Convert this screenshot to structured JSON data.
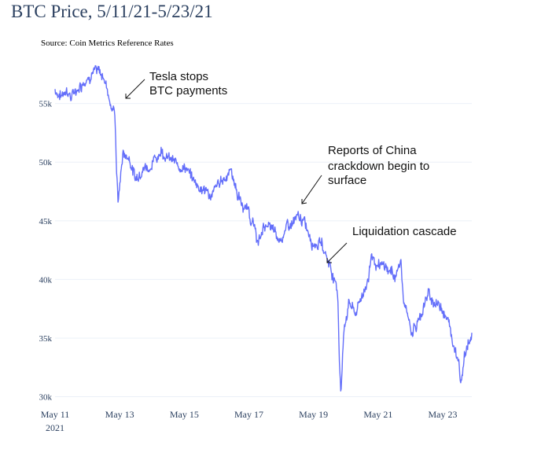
{
  "chart_data": {
    "type": "line",
    "title": "BTC Price, 5/11/21-5/23/21",
    "source": "Source: Coin Metrics Reference Rates",
    "series_color": "#636efa",
    "xlabel": "",
    "ylabel": "",
    "ylim": [
      29500,
      59000
    ],
    "xlim": [
      0,
      12.9
    ],
    "y_ticks": [
      {
        "value": 30000,
        "label": "30k"
      },
      {
        "value": 35000,
        "label": "35k"
      },
      {
        "value": 40000,
        "label": "40k"
      },
      {
        "value": 45000,
        "label": "45k"
      },
      {
        "value": 50000,
        "label": "50k"
      },
      {
        "value": 55000,
        "label": "55k"
      }
    ],
    "x_ticks": [
      {
        "value": 0,
        "label": "May 11",
        "sublabel": "2021"
      },
      {
        "value": 2,
        "label": "May 13"
      },
      {
        "value": 4,
        "label": "May 15"
      },
      {
        "value": 6,
        "label": "May 17"
      },
      {
        "value": 8,
        "label": "May 19"
      },
      {
        "value": 10,
        "label": "May 21"
      },
      {
        "value": 12,
        "label": "May 23"
      }
    ],
    "anchors": [
      [
        0.0,
        56200
      ],
      [
        0.2,
        55600
      ],
      [
        0.35,
        56400
      ],
      [
        0.5,
        55500
      ],
      [
        0.7,
        56300
      ],
      [
        0.9,
        57100
      ],
      [
        1.05,
        57400
      ],
      [
        1.15,
        58000
      ],
      [
        1.3,
        57600
      ],
      [
        1.5,
        57300
      ],
      [
        1.6,
        56600
      ],
      [
        1.75,
        54700
      ],
      [
        1.85,
        54200
      ],
      [
        1.9,
        50000
      ],
      [
        1.95,
        46500
      ],
      [
        2.0,
        48000
      ],
      [
        2.1,
        50800
      ],
      [
        2.3,
        50400
      ],
      [
        2.5,
        48500
      ],
      [
        2.7,
        49800
      ],
      [
        2.9,
        49600
      ],
      [
        3.1,
        50200
      ],
      [
        3.3,
        51200
      ],
      [
        3.5,
        50400
      ],
      [
        3.75,
        49700
      ],
      [
        4.0,
        49800
      ],
      [
        4.25,
        48500
      ],
      [
        4.55,
        47800
      ],
      [
        4.85,
        47100
      ],
      [
        5.15,
        48400
      ],
      [
        5.45,
        49400
      ],
      [
        5.65,
        47300
      ],
      [
        5.85,
        46000
      ],
      [
        6.0,
        46000
      ],
      [
        6.15,
        44400
      ],
      [
        6.3,
        43000
      ],
      [
        6.5,
        44800
      ],
      [
        6.7,
        44300
      ],
      [
        6.9,
        43200
      ],
      [
        7.15,
        44300
      ],
      [
        7.45,
        45000
      ],
      [
        7.65,
        45000
      ],
      [
        7.8,
        44400
      ],
      [
        8.0,
        43300
      ],
      [
        8.25,
        43100
      ],
      [
        8.45,
        41700
      ],
      [
        8.6,
        40500
      ],
      [
        8.75,
        38800
      ],
      [
        8.8,
        33500
      ],
      [
        8.85,
        30400
      ],
      [
        8.95,
        36000
      ],
      [
        9.1,
        38200
      ],
      [
        9.3,
        37000
      ],
      [
        9.5,
        38600
      ],
      [
        9.7,
        40200
      ],
      [
        9.8,
        42300
      ],
      [
        10.0,
        40800
      ],
      [
        10.2,
        41000
      ],
      [
        10.4,
        40600
      ],
      [
        10.55,
        40400
      ],
      [
        10.7,
        41600
      ],
      [
        10.8,
        37600
      ],
      [
        10.9,
        37000
      ],
      [
        11.05,
        35600
      ],
      [
        11.2,
        36100
      ],
      [
        11.35,
        37300
      ],
      [
        11.55,
        38700
      ],
      [
        11.75,
        38000
      ],
      [
        11.95,
        37800
      ],
      [
        12.1,
        37200
      ],
      [
        12.3,
        34800
      ],
      [
        12.4,
        34300
      ],
      [
        12.5,
        33200
      ],
      [
        12.55,
        31300
      ],
      [
        12.65,
        33200
      ],
      [
        12.8,
        34800
      ],
      [
        12.9,
        35200
      ]
    ],
    "annotations": [
      {
        "text_lines": [
          "Tesla stops",
          "BTC payments"
        ]
      },
      {
        "text_lines": [
          "Reports of China",
          "crackdown begin to",
          "surface"
        ]
      },
      {
        "text_lines": [
          "Liquidation cascade"
        ]
      }
    ]
  }
}
